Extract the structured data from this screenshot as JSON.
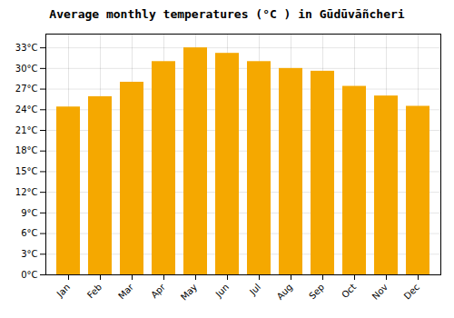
{
  "chart_data": {
    "type": "bar",
    "title": "Average monthly temperatures (°C ) in Gūdūvāñcheri",
    "categories": [
      "Jan",
      "Feb",
      "Mar",
      "Apr",
      "May",
      "Jun",
      "Jul",
      "Aug",
      "Sep",
      "Oct",
      "Nov",
      "Dec"
    ],
    "values": [
      24.4,
      25.9,
      28.0,
      31.0,
      33.0,
      32.2,
      31.0,
      30.0,
      29.6,
      27.4,
      26.0,
      24.5
    ],
    "color": "#F5A800",
    "ylim": [
      0,
      35
    ],
    "yticks": [
      {
        "value": 0,
        "label": "0°C"
      },
      {
        "value": 3,
        "label": "3°C"
      },
      {
        "value": 6,
        "label": "6°C"
      },
      {
        "value": 9,
        "label": "9°C"
      },
      {
        "value": 12,
        "label": "12°C"
      },
      {
        "value": 15,
        "label": "15°C"
      },
      {
        "value": 18,
        "label": "18°C"
      },
      {
        "value": 21,
        "label": "21°C"
      },
      {
        "value": 24,
        "label": "24°C"
      },
      {
        "value": 27,
        "label": "27°C"
      },
      {
        "value": 30,
        "label": "30°C"
      },
      {
        "value": 33,
        "label": "33°C"
      }
    ],
    "grid": true
  }
}
